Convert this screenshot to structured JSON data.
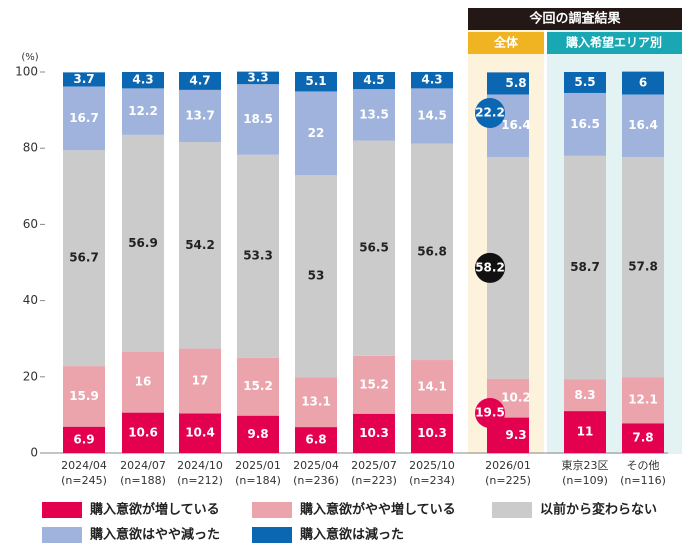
{
  "chart_data": {
    "type": "stacked_bar",
    "y_unit_label": "(%)",
    "categories": [
      "2024/04",
      "2024/07",
      "2024/10",
      "2025/01",
      "2025/04",
      "2025/07",
      "2025/10",
      "2026/01",
      "東京23区",
      "その他"
    ],
    "sample_sizes": [
      "(n=245)",
      "(n=188)",
      "(n=212)",
      "(n=184)",
      "(n=236)",
      "(n=223)",
      "(n=234)",
      "(n=225)",
      "(n=109)",
      "(n=116)"
    ],
    "series": [
      {
        "name": "購入意欲が増している",
        "color": "#e2004f",
        "values": [
          6.9,
          10.6,
          10.4,
          9.8,
          6.8,
          10.3,
          10.3,
          9.3,
          11.0,
          7.8
        ]
      },
      {
        "name": "購入意欲がやや増している",
        "color": "#eba3ac",
        "values": [
          15.9,
          16.0,
          17.0,
          15.2,
          13.1,
          15.2,
          14.1,
          10.2,
          8.3,
          12.1
        ]
      },
      {
        "name": "以前から変わらない",
        "color": "#cbcbcb",
        "values": [
          56.7,
          56.9,
          54.2,
          53.3,
          53.0,
          56.5,
          56.8,
          58.2,
          58.7,
          57.8
        ]
      },
      {
        "name": "購入意欲はやや減った",
        "color": "#9fb3dc",
        "values": [
          16.7,
          12.2,
          13.7,
          18.5,
          22.0,
          13.5,
          14.5,
          16.4,
          16.5,
          16.4
        ]
      },
      {
        "name": "購入意欲は減った",
        "color": "#0b67b2",
        "values": [
          3.7,
          4.3,
          4.7,
          3.3,
          5.1,
          4.5,
          4.3,
          5.8,
          5.5,
          6.0
        ]
      }
    ],
    "ylim": [
      0,
      100
    ],
    "yticks": [
      0,
      20,
      40,
      60,
      80,
      100
    ],
    "panel_title": "今回の調査結果",
    "panel_groups": [
      "全体",
      "購入希望エリア別"
    ],
    "annotations": [
      {
        "value": 19.5,
        "color": "#e2004f"
      },
      {
        "value": 22.2,
        "color": "#0b67b2"
      }
    ]
  }
}
